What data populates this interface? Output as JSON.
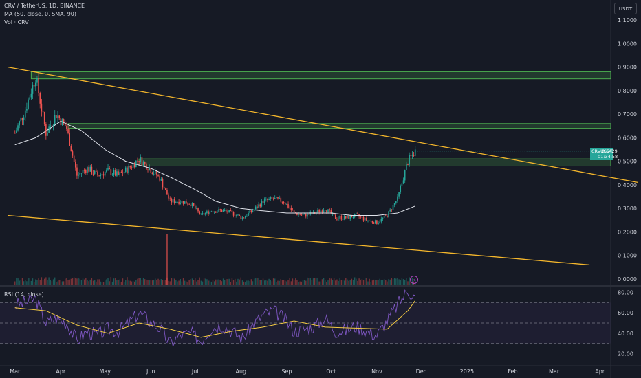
{
  "header": {
    "symbol_line": "CRV / TetherUS, 1D, BINANCE",
    "ma_line": "MA (50, close, 0, SMA, 90)",
    "vol_line": "Vol · CRV",
    "currency_button": "USDT"
  },
  "price_tag": {
    "symbol": "CRVUSDT",
    "price": "0.5429",
    "countdown": "01:34:58"
  },
  "rsi": {
    "label": "RSI (14, close)"
  },
  "colors": {
    "background": "#161a25",
    "up": "#26a69a",
    "down": "#ef5350",
    "trendline": "#f5b72c",
    "zone": "#4caf50",
    "ma": "#e0e3eb",
    "rsi_line": "#7e57c2",
    "rsi_ma": "#f5cc43"
  },
  "chart_data": [
    {
      "type": "candlestick",
      "title": "CRV / TetherUS, 1D, BINANCE",
      "x_ticks": [
        "Mar",
        "Apr",
        "May",
        "Jun",
        "Jul",
        "Aug",
        "Sep",
        "Oct",
        "Nov",
        "Dec",
        "2025",
        "Feb",
        "Mar",
        "Apr"
      ],
      "y_ticks": [
        "1.1000",
        "1.0000",
        "0.9000",
        "0.8000",
        "0.7000",
        "0.6000",
        "0.5000",
        "0.4000",
        "0.3000",
        "0.2000",
        "0.1000",
        "0.0000"
      ],
      "ylim": [
        0,
        1.1
      ],
      "last_price": 0.5429,
      "price_path_weekly": [
        [
          "2024-03-01",
          0.62
        ],
        [
          "2024-03-08",
          0.72
        ],
        [
          "2024-03-15",
          0.86
        ],
        [
          "2024-03-22",
          0.62
        ],
        [
          "2024-03-29",
          0.7
        ],
        [
          "2024-04-05",
          0.64
        ],
        [
          "2024-04-12",
          0.44
        ],
        [
          "2024-04-19",
          0.47
        ],
        [
          "2024-04-26",
          0.44
        ],
        [
          "2024-05-03",
          0.46
        ],
        [
          "2024-05-10",
          0.44
        ],
        [
          "2024-05-17",
          0.47
        ],
        [
          "2024-05-24",
          0.51
        ],
        [
          "2024-05-31",
          0.47
        ],
        [
          "2024-06-07",
          0.43
        ],
        [
          "2024-06-14",
          0.33
        ],
        [
          "2024-06-21",
          0.33
        ],
        [
          "2024-06-28",
          0.32
        ],
        [
          "2024-07-05",
          0.27
        ],
        [
          "2024-07-12",
          0.29
        ],
        [
          "2024-07-19",
          0.29
        ],
        [
          "2024-07-26",
          0.28
        ],
        [
          "2024-08-02",
          0.26
        ],
        [
          "2024-08-09",
          0.29
        ],
        [
          "2024-08-16",
          0.33
        ],
        [
          "2024-08-23",
          0.34
        ],
        [
          "2024-08-30",
          0.33
        ],
        [
          "2024-09-06",
          0.28
        ],
        [
          "2024-09-13",
          0.27
        ],
        [
          "2024-09-20",
          0.28
        ],
        [
          "2024-09-27",
          0.3
        ],
        [
          "2024-10-04",
          0.26
        ],
        [
          "2024-10-11",
          0.26
        ],
        [
          "2024-10-18",
          0.27
        ],
        [
          "2024-10-25",
          0.25
        ],
        [
          "2024-11-01",
          0.24
        ],
        [
          "2024-11-08",
          0.27
        ],
        [
          "2024-11-15",
          0.34
        ],
        [
          "2024-11-22",
          0.5
        ],
        [
          "2024-11-27",
          0.5429
        ]
      ],
      "moving_average": [
        [
          "2024-03-01",
          0.57
        ],
        [
          "2024-03-15",
          0.6
        ],
        [
          "2024-04-01",
          0.67
        ],
        [
          "2024-04-15",
          0.63
        ],
        [
          "2024-05-01",
          0.55
        ],
        [
          "2024-05-15",
          0.5
        ],
        [
          "2024-06-01",
          0.47
        ],
        [
          "2024-06-15",
          0.43
        ],
        [
          "2024-07-01",
          0.38
        ],
        [
          "2024-07-15",
          0.33
        ],
        [
          "2024-08-01",
          0.3
        ],
        [
          "2024-08-15",
          0.29
        ],
        [
          "2024-09-01",
          0.28
        ],
        [
          "2024-09-15",
          0.28
        ],
        [
          "2024-10-01",
          0.28
        ],
        [
          "2024-10-15",
          0.27
        ],
        [
          "2024-11-01",
          0.27
        ],
        [
          "2024-11-15",
          0.28
        ],
        [
          "2024-11-27",
          0.31
        ]
      ],
      "zones": [
        {
          "low": 0.85,
          "high": 0.88
        },
        {
          "low": 0.64,
          "high": 0.66
        },
        {
          "low": 0.48,
          "high": 0.51
        }
      ],
      "trendlines": [
        {
          "from": [
            "2024-02-25",
            0.9
          ],
          "to": [
            "2025-04-30",
            0.41
          ]
        },
        {
          "from": [
            "2024-02-25",
            0.27
          ],
          "to": [
            "2025-03-25",
            0.06
          ]
        }
      ]
    },
    {
      "type": "line",
      "title": "RSI (14, close)",
      "y_ticks": [
        "80.00",
        "60.00",
        "40.00",
        "20.00"
      ],
      "ylim": [
        15,
        85
      ],
      "levels": [
        70,
        50,
        30
      ],
      "rsi_weekly": [
        [
          "2024-03-01",
          68
        ],
        [
          "2024-03-08",
          70
        ],
        [
          "2024-03-15",
          74
        ],
        [
          "2024-03-22",
          50
        ],
        [
          "2024-03-29",
          55
        ],
        [
          "2024-04-05",
          50
        ],
        [
          "2024-04-12",
          33
        ],
        [
          "2024-04-19",
          42
        ],
        [
          "2024-04-26",
          38
        ],
        [
          "2024-05-03",
          44
        ],
        [
          "2024-05-10",
          42
        ],
        [
          "2024-05-17",
          50
        ],
        [
          "2024-05-24",
          60
        ],
        [
          "2024-05-31",
          52
        ],
        [
          "2024-06-07",
          45
        ],
        [
          "2024-06-14",
          30
        ],
        [
          "2024-06-21",
          38
        ],
        [
          "2024-06-28",
          40
        ],
        [
          "2024-07-05",
          33
        ],
        [
          "2024-07-12",
          45
        ],
        [
          "2024-07-19",
          48
        ],
        [
          "2024-07-26",
          42
        ],
        [
          "2024-08-02",
          35
        ],
        [
          "2024-08-09",
          48
        ],
        [
          "2024-08-16",
          58
        ],
        [
          "2024-08-23",
          62
        ],
        [
          "2024-08-30",
          55
        ],
        [
          "2024-09-06",
          42
        ],
        [
          "2024-09-13",
          44
        ],
        [
          "2024-09-20",
          47
        ],
        [
          "2024-09-27",
          55
        ],
        [
          "2024-10-04",
          42
        ],
        [
          "2024-10-11",
          43
        ],
        [
          "2024-10-18",
          47
        ],
        [
          "2024-10-25",
          42
        ],
        [
          "2024-11-01",
          38
        ],
        [
          "2024-11-08",
          52
        ],
        [
          "2024-11-15",
          68
        ],
        [
          "2024-11-22",
          82
        ],
        [
          "2024-11-27",
          75
        ]
      ],
      "rsi_ma": [
        [
          "2024-03-01",
          65
        ],
        [
          "2024-03-22",
          62
        ],
        [
          "2024-04-12",
          48
        ],
        [
          "2024-05-03",
          40
        ],
        [
          "2024-05-24",
          50
        ],
        [
          "2024-06-14",
          44
        ],
        [
          "2024-07-05",
          36
        ],
        [
          "2024-07-26",
          42
        ],
        [
          "2024-08-16",
          46
        ],
        [
          "2024-09-06",
          52
        ],
        [
          "2024-09-27",
          46
        ],
        [
          "2024-10-18",
          45
        ],
        [
          "2024-11-08",
          44
        ],
        [
          "2024-11-22",
          62
        ],
        [
          "2024-11-27",
          72
        ]
      ]
    }
  ]
}
